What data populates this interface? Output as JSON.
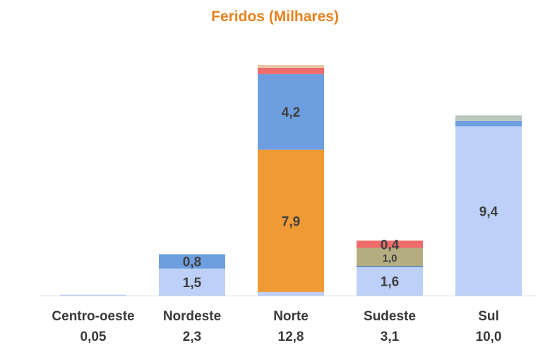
{
  "chart_data": {
    "type": "bar",
    "stacked": true,
    "title": "Feridos (Milhares)",
    "xlabel": "",
    "ylabel": "",
    "ylim": [
      0,
      13.2
    ],
    "grid": false,
    "legend": "none",
    "categories": [
      "Centro-oeste",
      "Nordeste",
      "Norte",
      "Sudeste",
      "Sul"
    ],
    "totals": [
      "0,05",
      "2,3",
      "12,8",
      "3,1",
      "10,0"
    ],
    "series": [
      {
        "color": "#bdd0f8",
        "values": [
          0.05,
          1.5,
          0.2,
          1.6,
          9.4
        ],
        "labels": [
          "",
          "1,5",
          "",
          "1,6",
          "9,4"
        ]
      },
      {
        "color": "#f09a35",
        "values": [
          0,
          0,
          7.9,
          0,
          0
        ],
        "labels": [
          "",
          "",
          "7,9",
          "",
          ""
        ]
      },
      {
        "color": "#4a6ea6",
        "values": [
          0,
          0,
          0,
          0.05,
          0
        ],
        "labels": [
          "",
          "",
          "",
          "",
          ""
        ]
      },
      {
        "color": "#6d9edf",
        "values": [
          0,
          0.8,
          4.2,
          0,
          0.3
        ],
        "labels": [
          "",
          "0,8",
          "4,2",
          "",
          ""
        ]
      },
      {
        "color": "#b5ad82",
        "values": [
          0,
          0,
          0,
          1.0,
          0
        ],
        "labels": [
          "",
          "",
          "",
          "1,0",
          ""
        ]
      },
      {
        "color": "#f06b6b",
        "values": [
          0,
          0,
          0.35,
          0.4,
          0
        ],
        "labels": [
          "",
          "",
          "",
          "0,4",
          ""
        ]
      },
      {
        "color": "#b9c7bd",
        "values": [
          0,
          0,
          0,
          0,
          0.3
        ],
        "labels": [
          "",
          "",
          "",
          "",
          ""
        ]
      },
      {
        "color": "#e5c9a4",
        "values": [
          0,
          0,
          0.15,
          0,
          0
        ],
        "labels": [
          "",
          "",
          "",
          "",
          ""
        ]
      }
    ],
    "colors": {
      "title": "#e8821e",
      "labels": "#404040"
    }
  }
}
